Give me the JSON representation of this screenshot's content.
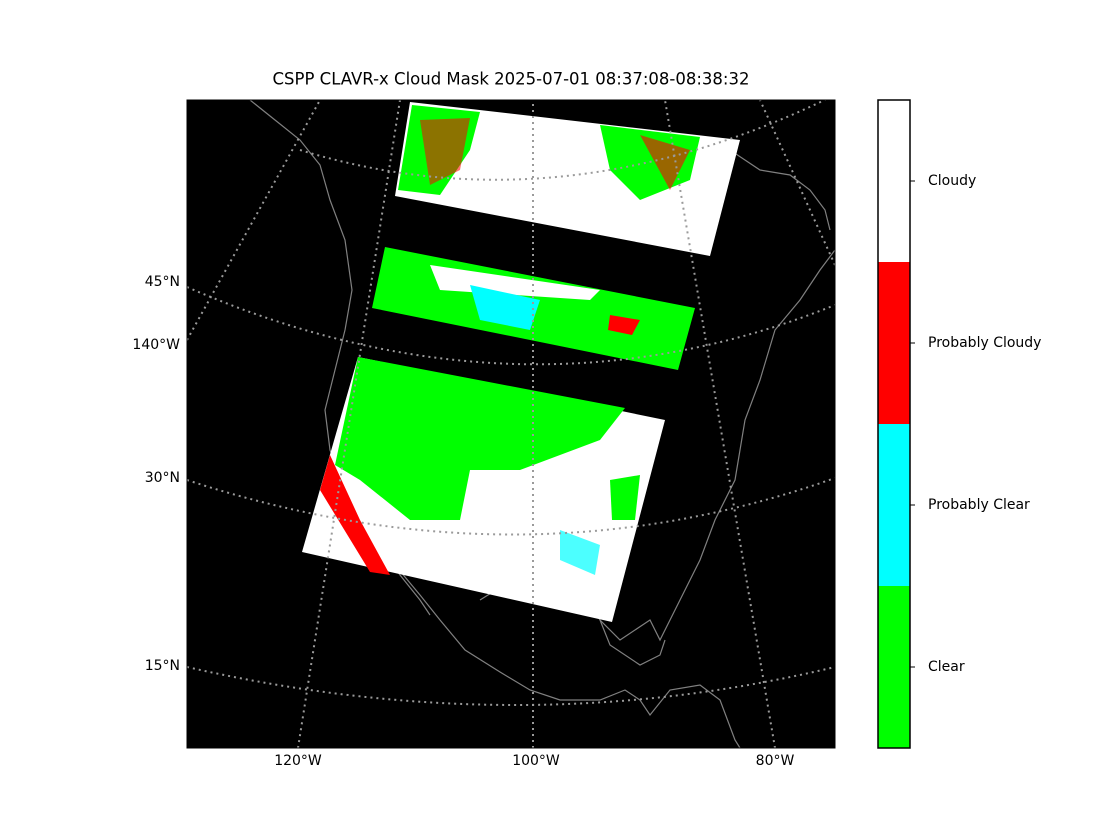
{
  "title": "CSPP CLAVR-x Cloud Mask 2025-07-01 08:37:08-08:38:32",
  "map": {
    "left_labels": [
      "45°N",
      "140°W",
      "30°N",
      "15°N"
    ],
    "bottom_labels": [
      "120°W",
      "100°W",
      "80°W"
    ]
  },
  "colorbar": {
    "categories": [
      {
        "label": "Cloudy",
        "color": "#ffffff"
      },
      {
        "label": "Probably Cloudy",
        "color": "#ff0000"
      },
      {
        "label": "Probably Clear",
        "color": "#00ffff"
      },
      {
        "label": "Clear",
        "color": "#00ff00"
      }
    ]
  }
}
